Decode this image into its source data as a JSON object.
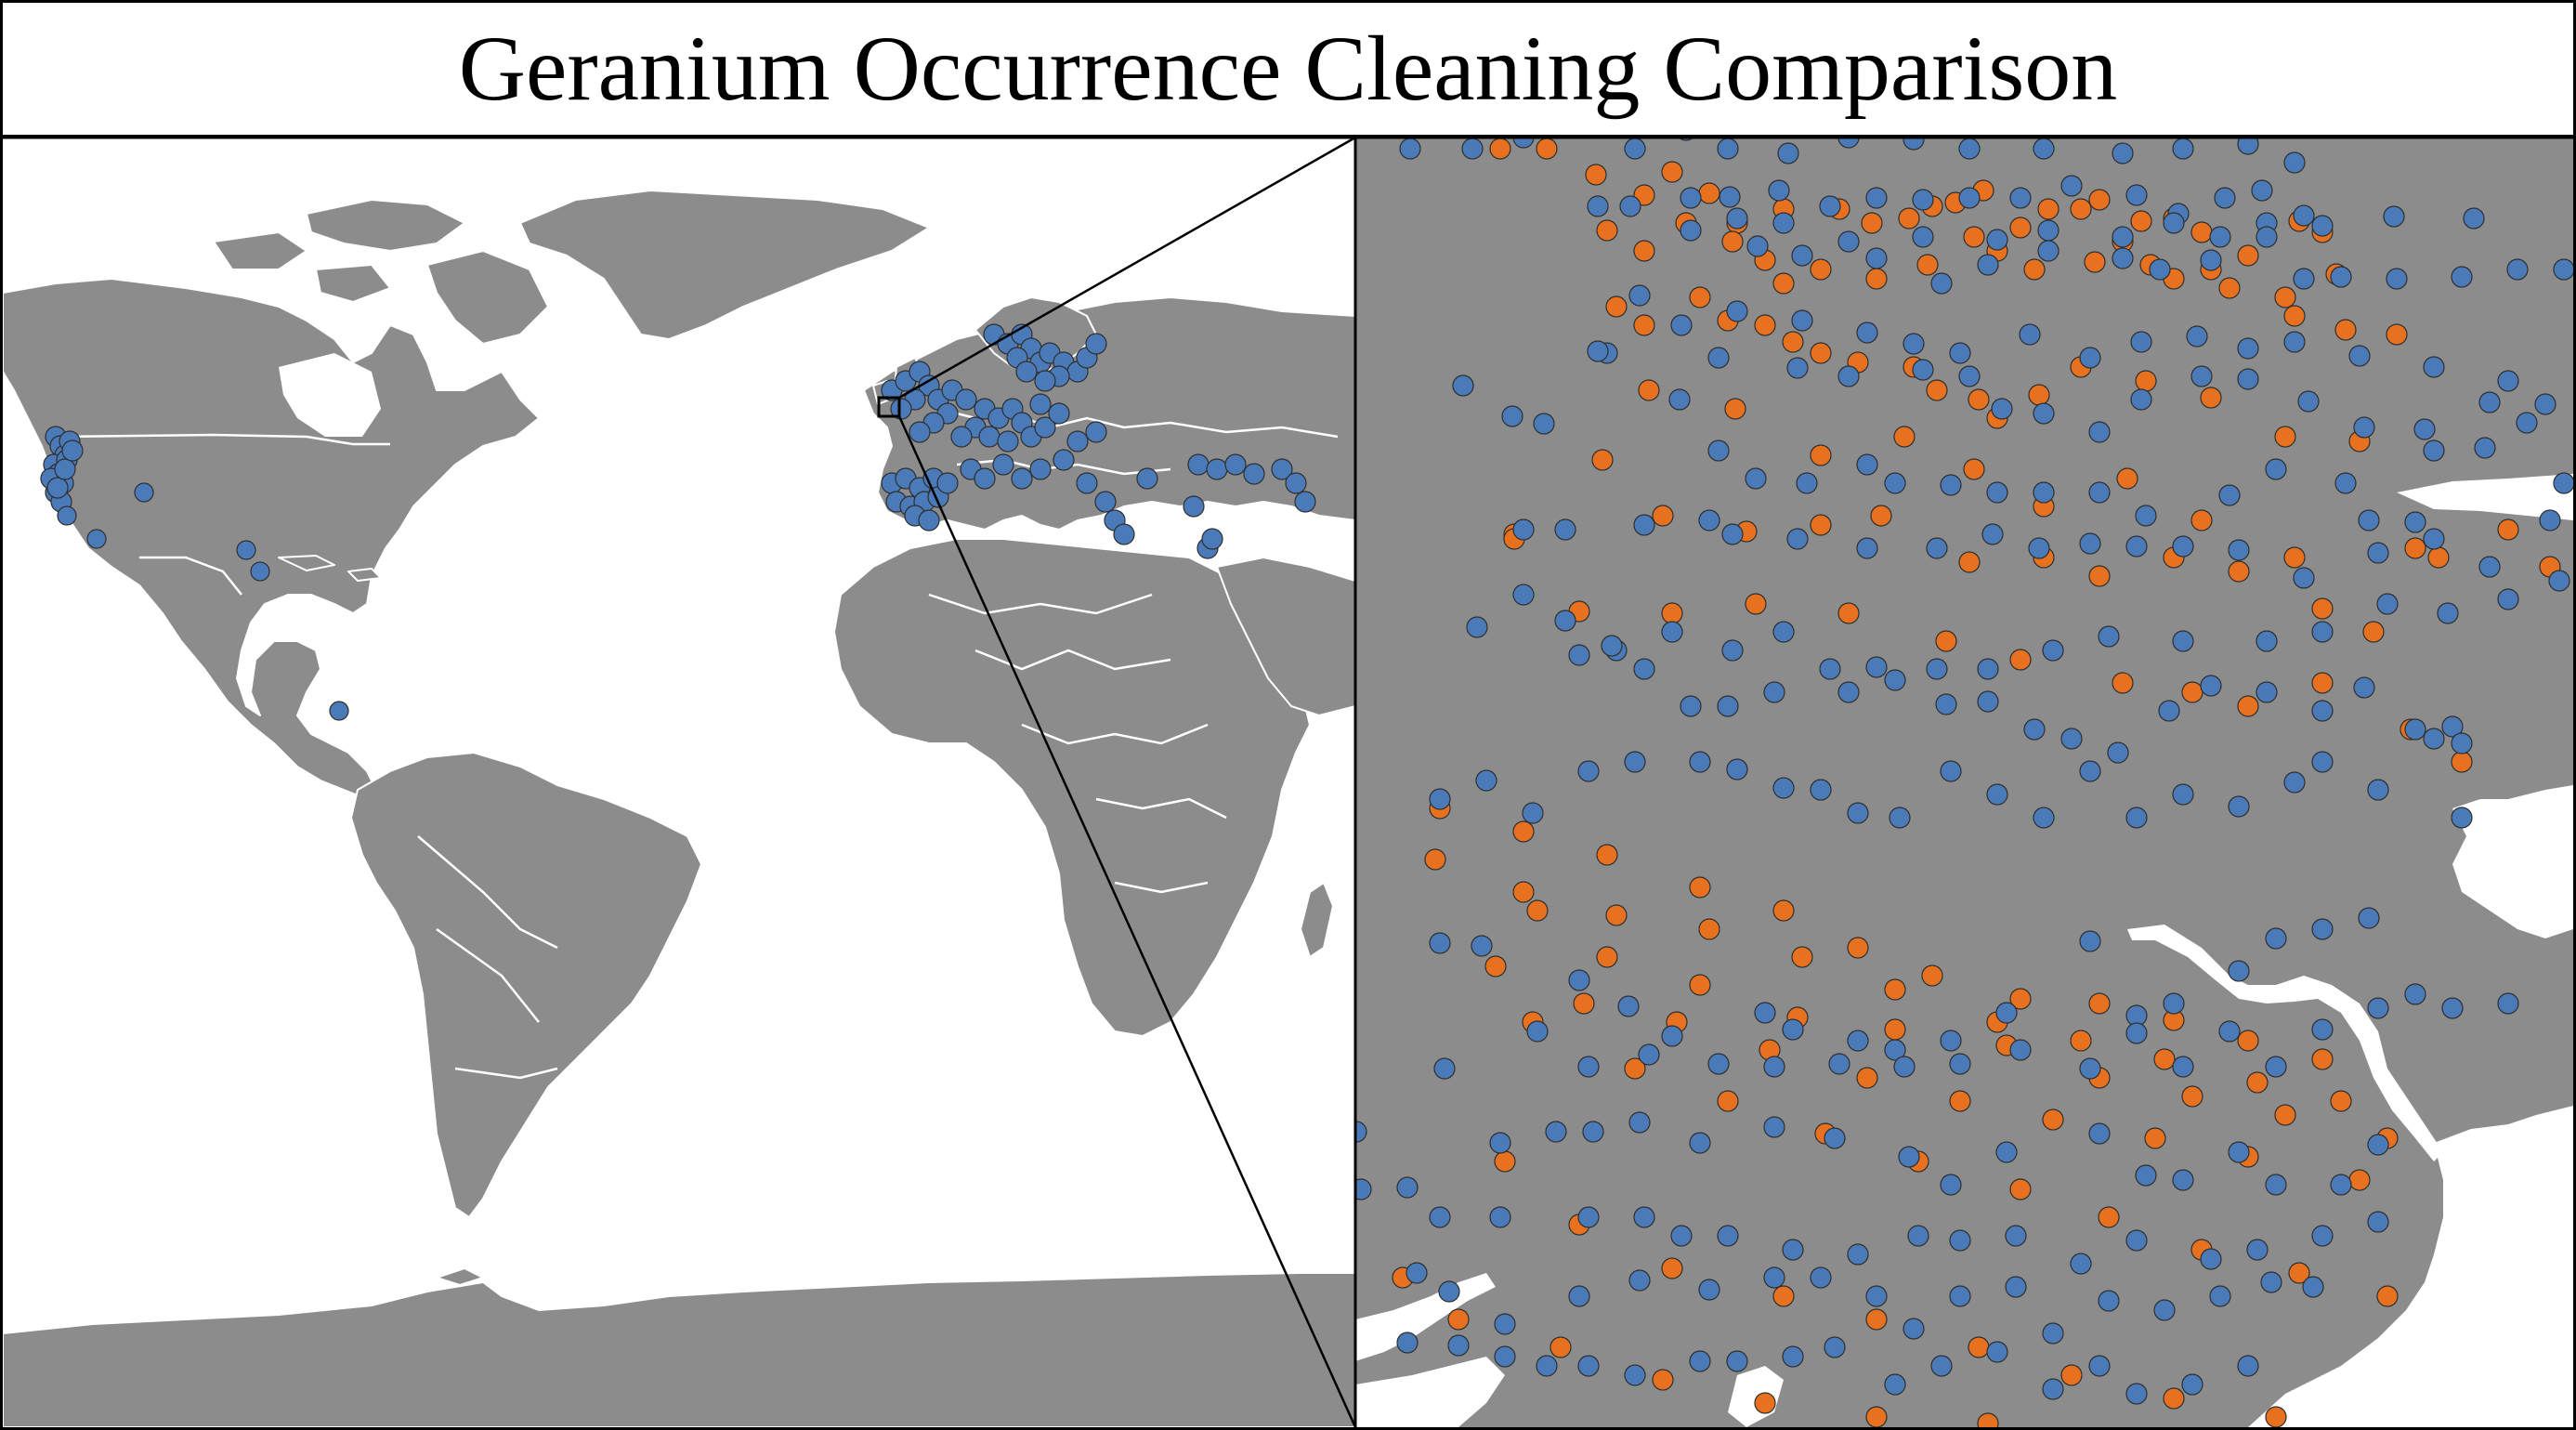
{
  "title": "Geranium Occurrence Cleaning Comparison",
  "colors": {
    "land": "#8c8c8c",
    "ocean": "#ffffff",
    "border": "#ffffff",
    "point_blue": "#4a7ab8",
    "point_orange": "#e8711f",
    "point_outline": "#2f2f2f"
  },
  "world_map": {
    "projection": "world overview",
    "marker_color": "point_blue",
    "inset_box": "western Europe"
  },
  "zoom_map": {
    "series": [
      "point_blue",
      "point_orange"
    ]
  }
}
